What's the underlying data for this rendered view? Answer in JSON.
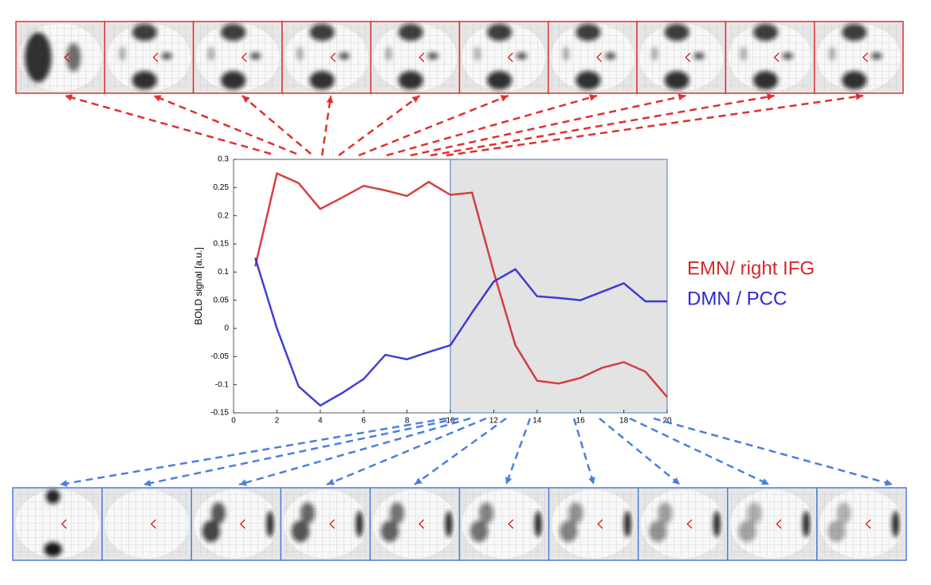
{
  "chart_data": {
    "type": "line",
    "y_label": "BOLD signal [a.u.]",
    "x": [
      1,
      2,
      3,
      4,
      5,
      6,
      7,
      8,
      9,
      10,
      11,
      12,
      13,
      14,
      15,
      16,
      17,
      18,
      19,
      20
    ],
    "series": [
      {
        "name": "EMN/ right IFG",
        "color": "#d42a2a",
        "values": [
          0.11,
          0.275,
          0.258,
          0.212,
          0.232,
          0.253,
          0.245,
          0.235,
          0.26,
          0.237,
          0.241,
          0.1,
          -0.03,
          -0.093,
          -0.098,
          -0.088,
          -0.07,
          -0.06,
          -0.077,
          -0.122
        ]
      },
      {
        "name": "DMN / PCC",
        "color": "#2a2ad4",
        "values": [
          0.125,
          0.0,
          -0.103,
          -0.137,
          -0.115,
          -0.09,
          -0.047,
          -0.055,
          -0.042,
          -0.03,
          0.028,
          0.083,
          0.105,
          0.057,
          0.054,
          0.05,
          0.065,
          0.08,
          0.048,
          0.048
        ]
      }
    ],
    "shaded_region": [
      10,
      20
    ],
    "xlim": [
      0,
      20
    ],
    "xticks": [
      0,
      2,
      4,
      6,
      8,
      10,
      12,
      14,
      16,
      18,
      20
    ],
    "ylim": [
      -0.15,
      0.3
    ],
    "yticks": [
      -0.15,
      -0.1,
      -0.05,
      0,
      0.05,
      0.1,
      0.15,
      0.2,
      0.25,
      0.3
    ]
  }
}
